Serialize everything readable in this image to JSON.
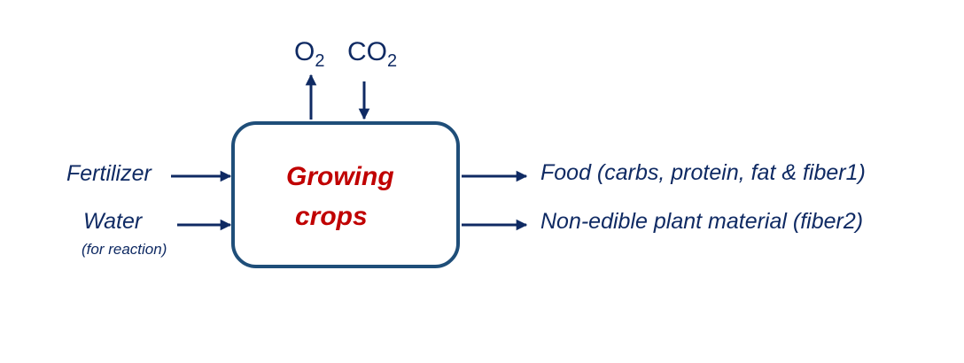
{
  "process": {
    "line1": "Growing",
    "line2": "crops"
  },
  "gases": {
    "out": {
      "base": "O",
      "sub": "2"
    },
    "in": {
      "base": "CO",
      "sub": "2"
    }
  },
  "inputs": [
    {
      "label": "Fertilizer"
    },
    {
      "label": "Water",
      "note": "(for reaction)"
    }
  ],
  "outputs": [
    {
      "label": "Food (carbs, protein, fat & fiber1)"
    },
    {
      "label": "Non-edible plant material (fiber2)"
    }
  ],
  "colors": {
    "text": "#0f2a63",
    "box_border": "#1f4e79",
    "process_text": "#c00000",
    "arrow": "#0f2a63"
  }
}
